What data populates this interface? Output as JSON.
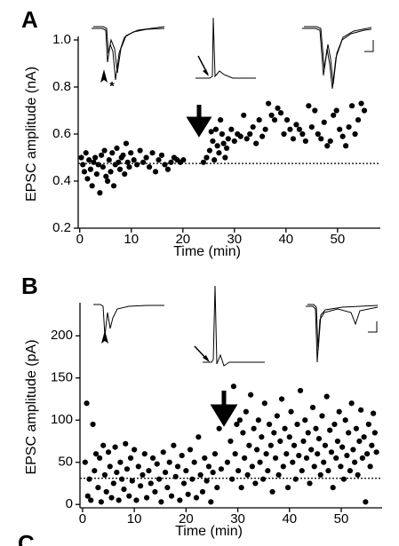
{
  "chart_data": [
    {
      "type": "scatter",
      "panel_label": "A",
      "y_label": "EPSC amplitude (nA)",
      "x_label": "Time (min)",
      "annotations": [
        "*"
      ],
      "color": "#000000",
      "reference_line": 0.475,
      "xlim": [
        -0.3,
        58.3
      ],
      "xticks": [
        0,
        10,
        20,
        30,
        40,
        50
      ],
      "ylim": [
        0.2,
        1.0
      ],
      "yticks": [
        0.2,
        0.4,
        0.6,
        0.8,
        {
          "value": 1,
          "label": "1.0"
        }
      ],
      "x": [
        0.3,
        0.6,
        0.9,
        1.2,
        1.5,
        1.8,
        2.1,
        2.4,
        2.7,
        3.0,
        3.3,
        3.6,
        3.9,
        4.2,
        4.5,
        4.8,
        5.1,
        5.4,
        5.7,
        6.0,
        6.3,
        6.6,
        6.9,
        7.2,
        7.5,
        7.8,
        8.1,
        8.4,
        8.7,
        9.0,
        9.3,
        9.6,
        9.9,
        10.5,
        11.1,
        11.7,
        12.3,
        12.9,
        13.5,
        14.1,
        14.7,
        15.3,
        15.9,
        16.5,
        17.1,
        17.7,
        18.3,
        18.9,
        19.5,
        20.1,
        24.0,
        24.6,
        25.2,
        25.5,
        25.8,
        26.1,
        26.4,
        26.7,
        27.0,
        27.3,
        27.6,
        27.9,
        28.2,
        28.5,
        28.8,
        29.4,
        30.0,
        30.6,
        31.2,
        31.8,
        32.4,
        33.0,
        33.6,
        34.2,
        34.8,
        35.4,
        36.0,
        36.6,
        37.2,
        37.8,
        38.4,
        39.0,
        39.6,
        40.2,
        40.8,
        41.4,
        42.0,
        42.6,
        43.2,
        43.8,
        44.4,
        45.0,
        45.6,
        46.2,
        46.8,
        47.4,
        48.0,
        48.6,
        49.2,
        49.8,
        50.4,
        51.0,
        51.6,
        52.2,
        52.8,
        53.4,
        54.0,
        54.6,
        55.2
      ],
      "values": [
        0.5,
        0.47,
        0.44,
        0.52,
        0.41,
        0.49,
        0.45,
        0.38,
        0.48,
        0.5,
        0.43,
        0.47,
        0.35,
        0.51,
        0.46,
        0.53,
        0.42,
        0.4,
        0.49,
        0.44,
        0.52,
        0.38,
        0.47,
        0.54,
        0.48,
        0.45,
        0.5,
        0.51,
        0.43,
        0.56,
        0.48,
        0.46,
        0.52,
        0.49,
        0.47,
        0.53,
        0.48,
        0.5,
        0.46,
        0.52,
        0.44,
        0.49,
        0.51,
        0.47,
        0.45,
        0.48,
        0.5,
        0.49,
        0.48,
        0.49,
        0.48,
        0.5,
        0.53,
        0.61,
        0.57,
        0.49,
        0.62,
        0.55,
        0.52,
        0.66,
        0.6,
        0.56,
        0.5,
        0.54,
        0.58,
        0.62,
        0.57,
        0.6,
        0.59,
        0.68,
        0.58,
        0.6,
        0.63,
        0.56,
        0.66,
        0.59,
        0.62,
        0.73,
        0.68,
        0.66,
        0.71,
        0.69,
        0.6,
        0.66,
        0.62,
        0.58,
        0.64,
        0.62,
        0.6,
        0.57,
        0.72,
        0.63,
        0.7,
        0.6,
        0.58,
        0.65,
        0.55,
        0.57,
        0.68,
        0.7,
        0.62,
        0.59,
        0.55,
        0.63,
        0.72,
        0.6,
        0.66,
        0.73,
        0.7
      ]
    },
    {
      "type": "scatter",
      "panel_label": "B",
      "y_label": "EPSC amplitude (pA)",
      "x_label": "Time (min)",
      "color": "#000000",
      "reference_line": 31,
      "xlim": [
        -0.5,
        57.9
      ],
      "xticks": [
        0,
        10,
        20,
        30,
        40,
        50
      ],
      "ylim": [
        -4,
        235
      ],
      "yticks": [
        0,
        50,
        100,
        150,
        200
      ],
      "x": [
        0.5,
        0.8,
        1.0,
        1.3,
        1.6,
        2.0,
        2.3,
        2.6,
        3.0,
        3.3,
        3.6,
        4.0,
        4.3,
        4.6,
        5.0,
        5.3,
        5.6,
        6.0,
        6.3,
        6.6,
        7.0,
        7.3,
        7.6,
        8.0,
        8.3,
        8.6,
        9.0,
        9.3,
        9.6,
        10.0,
        10.4,
        10.8,
        11.2,
        11.6,
        12.0,
        12.4,
        12.8,
        13.2,
        13.6,
        14.0,
        14.4,
        14.8,
        15.2,
        15.6,
        16.0,
        16.4,
        16.8,
        17.2,
        17.6,
        18.0,
        18.4,
        18.8,
        19.2,
        19.6,
        20.0,
        20.4,
        20.8,
        21.2,
        21.6,
        22.0,
        22.4,
        22.8,
        23.2,
        23.6,
        24.0,
        24.4,
        24.8,
        25.2,
        25.6,
        26.0,
        26.4,
        26.8,
        28.0,
        28.3,
        28.6,
        28.9,
        29.2,
        29.5,
        29.8,
        30.1,
        30.4,
        30.7,
        31.0,
        31.3,
        31.6,
        31.9,
        32.2,
        32.5,
        32.8,
        33.1,
        33.4,
        33.7,
        34.0,
        34.3,
        34.6,
        34.9,
        35.2,
        35.5,
        35.8,
        36.1,
        36.4,
        36.7,
        37.0,
        37.3,
        37.6,
        37.9,
        38.2,
        38.5,
        38.8,
        39.1,
        39.4,
        39.7,
        40.0,
        40.3,
        40.6,
        40.9,
        41.2,
        41.5,
        41.8,
        42.1,
        42.4,
        42.7,
        43.0,
        43.3,
        43.6,
        43.9,
        44.2,
        44.5,
        44.8,
        45.1,
        45.4,
        45.7,
        46.0,
        46.3,
        46.6,
        46.9,
        47.2,
        47.5,
        47.8,
        48.1,
        48.4,
        48.7,
        49.0,
        49.3,
        49.6,
        49.9,
        50.2,
        50.5,
        50.8,
        51.1,
        51.4,
        51.7,
        52.0,
        52.3,
        52.6,
        52.9,
        53.2,
        53.5,
        53.8,
        54.1,
        54.4,
        54.7,
        55.0,
        55.3,
        55.6,
        55.9,
        56.2,
        56.5,
        56.8
      ],
      "values": [
        50,
        120,
        10,
        30,
        5,
        95,
        40,
        60,
        20,
        55,
        3,
        70,
        35,
        15,
        62,
        45,
        8,
        25,
        68,
        38,
        5,
        50,
        30,
        18,
        72,
        42,
        10,
        55,
        28,
        65,
        5,
        45,
        22,
        35,
        60,
        8,
        40,
        25,
        55,
        15,
        48,
        30,
        3,
        62,
        38,
        20,
        50,
        10,
        70,
        33,
        45,
        5,
        58,
        25,
        40,
        12,
        65,
        30,
        50,
        8,
        80,
        35,
        15,
        55,
        28,
        45,
        3,
        38,
        60,
        20,
        90,
        42,
        50,
        115,
        75,
        30,
        140,
        60,
        95,
        40,
        100,
        20,
        85,
        55,
        110,
        35,
        70,
        130,
        45,
        90,
        25,
        65,
        100,
        50,
        80,
        30,
        120,
        60,
        40,
        95,
        70,
        15,
        85,
        55,
        105,
        35,
        75,
        125,
        45,
        90,
        60,
        20,
        80,
        110,
        50,
        70,
        30,
        95,
        58,
        135,
        40,
        75,
        100,
        55,
        85,
        25,
        65,
        115,
        45,
        90,
        60,
        78,
        35,
        105,
        50,
        70,
        128,
        40,
        88,
        62,
        20,
        95,
        55,
        75,
        110,
        45,
        68,
        30,
        100,
        58,
        85,
        40,
        120,
        65,
        50,
        90,
        35,
        75,
        112,
        55,
        80,
        3,
        60,
        95,
        45,
        70,
        108,
        85,
        62
      ]
    }
  ],
  "next_panel_label": "C"
}
